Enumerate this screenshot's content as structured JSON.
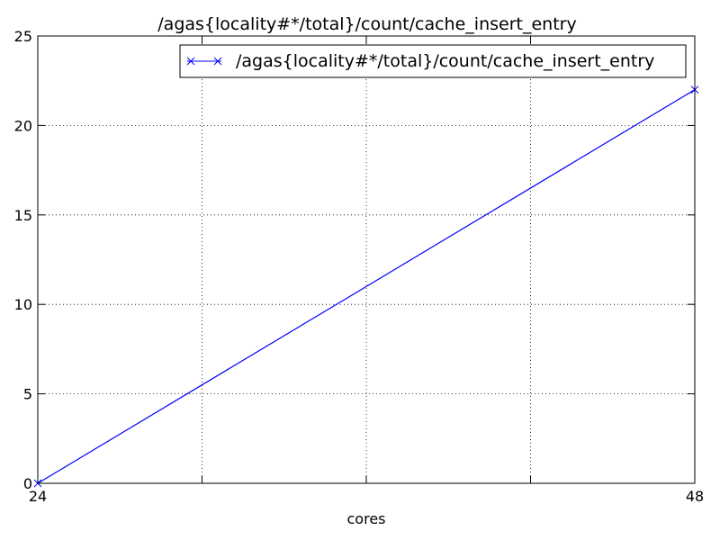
{
  "chart_data": {
    "type": "line",
    "title": "/agas{locality#*/total}/count/cache_insert_entry",
    "xlabel": "cores",
    "ylabel": "",
    "xlim": [
      24,
      48
    ],
    "ylim": [
      0,
      25
    ],
    "xticks": [
      24,
      48
    ],
    "xtick_labels": [
      "24",
      "48"
    ],
    "x_gridlines": [
      24,
      30,
      36,
      42,
      48
    ],
    "yticks": [
      0,
      5,
      10,
      15,
      20,
      25
    ],
    "ytick_labels": [
      "0",
      "5",
      "10",
      "15",
      "20",
      "25"
    ],
    "grid": true,
    "legend_position": "top-right",
    "series": [
      {
        "name": "/agas{locality#*/total}/count/cache_insert_entry",
        "color": "#0000ff",
        "marker": "x",
        "x": [
          24,
          48
        ],
        "y": [
          0,
          22
        ]
      }
    ]
  }
}
